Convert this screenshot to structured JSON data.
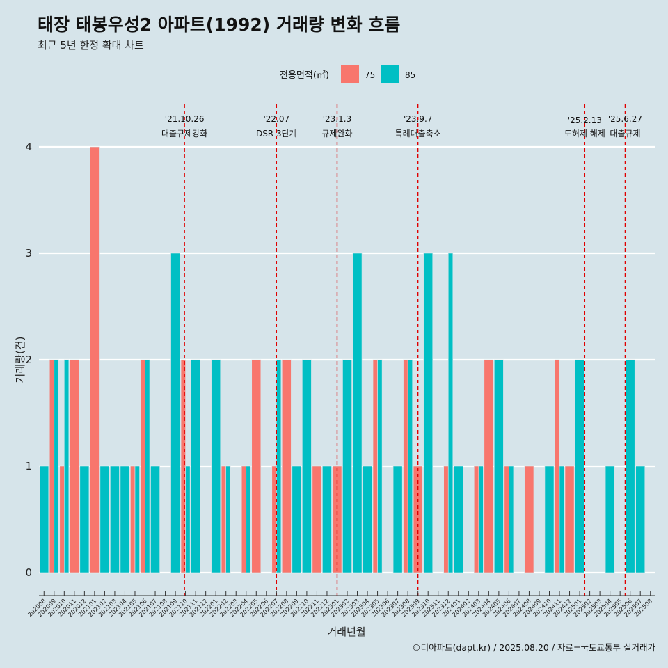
{
  "title": "태장 태봉우성2 아파트(1992) 거래량 변화 흐름",
  "subtitle": "최근 5년 한정 확대 차트",
  "caption": "©디아파트(dapt.kr) / 2025.08.20 / 자료=국토교통부 실거래가",
  "colors": {
    "background": "#d6e4ea",
    "s75": "#f8766d",
    "s85": "#00bfc4",
    "event_line": "#e00000",
    "grid": "#ffffff"
  },
  "chart_data": {
    "type": "bar",
    "title": "태장 태봉우성2 아파트(1992) 거래량 변화 흐름",
    "subtitle": "최근 5년 한정 확대 차트",
    "xlabel": "거래년월",
    "ylabel": "거래량(건)",
    "ylim": [
      0,
      4
    ],
    "yticks": [
      0,
      1,
      2,
      3,
      4
    ],
    "grid": true,
    "legend": {
      "title": "전용면적(㎡)",
      "position": "top"
    },
    "categories": [
      "202008",
      "202009",
      "202010",
      "202011",
      "202012",
      "202101",
      "202102",
      "202103",
      "202104",
      "202105",
      "202106",
      "202107",
      "202108",
      "202109",
      "202110",
      "202111",
      "202112",
      "202201",
      "202202",
      "202203",
      "202204",
      "202205",
      "202206",
      "202207",
      "202208",
      "202209",
      "202210",
      "202211",
      "202212",
      "202301",
      "202302",
      "202303",
      "202304",
      "202305",
      "202306",
      "202307",
      "202308",
      "202309",
      "202310",
      "202311",
      "202312",
      "202401",
      "202402",
      "202403",
      "202404",
      "202405",
      "202406",
      "202407",
      "202408",
      "202409",
      "202410",
      "202411",
      "202412",
      "202501",
      "202502",
      "202503",
      "202504",
      "202505",
      "202506",
      "202507",
      "202508"
    ],
    "series": [
      {
        "name": "75",
        "color": "#f8766d",
        "values": [
          0,
          2,
          1,
          2,
          0,
          4,
          0,
          0,
          0,
          1,
          2,
          0,
          0,
          0,
          2,
          0,
          0,
          0,
          1,
          0,
          1,
          2,
          0,
          1,
          2,
          0,
          0,
          1,
          0,
          1,
          0,
          0,
          0,
          2,
          0,
          0,
          2,
          1,
          0,
          0,
          1,
          0,
          0,
          1,
          2,
          0,
          1,
          0,
          1,
          0,
          0,
          2,
          1,
          0,
          0,
          0,
          0,
          0,
          0,
          0,
          0
        ]
      },
      {
        "name": "85",
        "color": "#00bfc4",
        "values": [
          1,
          2,
          2,
          0,
          1,
          0,
          1,
          1,
          1,
          1,
          2,
          1,
          0,
          3,
          1,
          2,
          0,
          2,
          1,
          0,
          1,
          0,
          0,
          2,
          0,
          1,
          2,
          0,
          1,
          0,
          2,
          3,
          1,
          2,
          0,
          1,
          2,
          0,
          3,
          0,
          3,
          1,
          0,
          1,
          0,
          2,
          1,
          0,
          0,
          0,
          1,
          1,
          0,
          2,
          0,
          0,
          1,
          0,
          2,
          1,
          0
        ]
      }
    ],
    "events": [
      {
        "date": "'21.10.26",
        "label": "대출규제강화",
        "x": 14.4
      },
      {
        "date": "'22.07",
        "label": "DSR 3단계",
        "x": 23.5
      },
      {
        "date": "'23.1.3",
        "label": "규제완화",
        "x": 29.5
      },
      {
        "date": "'23.9.7",
        "label": "특례대출축소",
        "x": 37.5
      },
      {
        "date": "'25.2.13",
        "label": "토허제 해제",
        "x": 54.0
      },
      {
        "date": "'25.6.27",
        "label": "대출규제",
        "x": 58.0
      }
    ]
  }
}
